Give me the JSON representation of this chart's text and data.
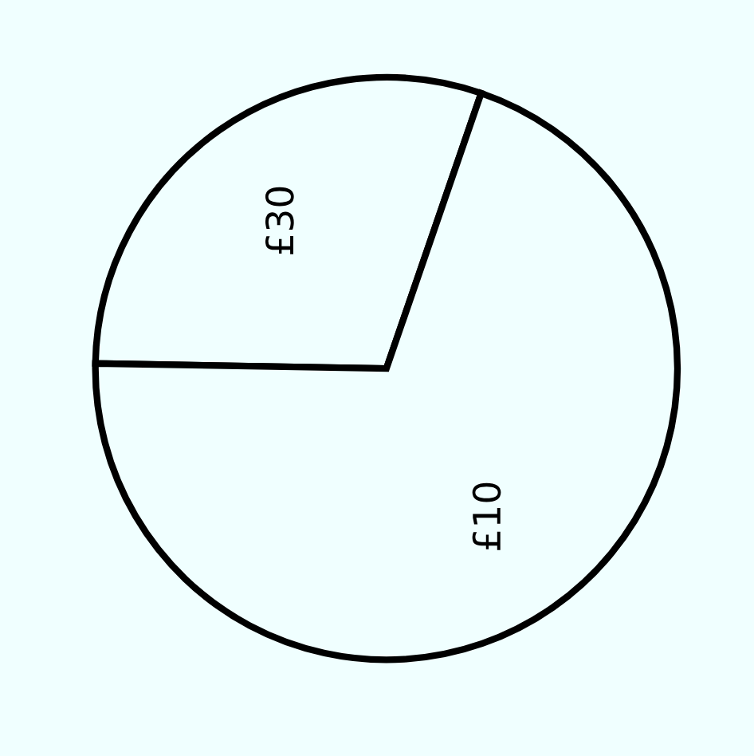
{
  "chart_data": {
    "type": "pie",
    "categories": [
      "£30",
      "£10"
    ],
    "values": [
      30,
      70
    ],
    "colors": [
      "#f0ffff",
      "#f0ffff"
    ]
  }
}
